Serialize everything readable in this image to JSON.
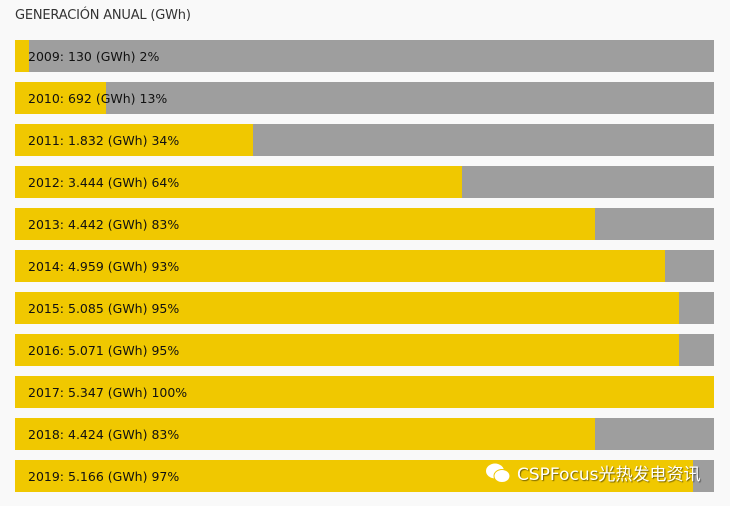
{
  "chart_data": {
    "type": "bar",
    "orientation": "horizontal",
    "title": "GENERACIÓN ANUAL (GWh)",
    "unit": "GWh",
    "categories": [
      "2009",
      "2010",
      "2011",
      "2012",
      "2013",
      "2014",
      "2015",
      "2016",
      "2017",
      "2018",
      "2019"
    ],
    "values": [
      130,
      692,
      1832,
      3444,
      4442,
      4959,
      5085,
      5071,
      5347,
      4424,
      5166
    ],
    "percent": [
      2,
      13,
      34,
      64,
      83,
      93,
      95,
      95,
      100,
      83,
      97
    ],
    "labels": [
      "2009: 130 (GWh) 2%",
      "2010: 692 (GWh) 13%",
      "2011: 1.832 (GWh) 34%",
      "2012: 3.444 (GWh) 64%",
      "2013: 4.442 (GWh) 83%",
      "2014: 4.959 (GWh) 93%",
      "2015: 5.085 (GWh) 95%",
      "2016: 5.071 (GWh) 95%",
      "2017: 5.347 (GWh) 100%",
      "2018: 4.424 (GWh) 83%",
      "2019: 5.166 (GWh) 97%"
    ],
    "colors": {
      "fill": "#f0c800",
      "track": "#9e9e9e"
    }
  },
  "watermark": {
    "icon": "wechat-icon",
    "text": "CSPFocus光热发电资讯"
  }
}
